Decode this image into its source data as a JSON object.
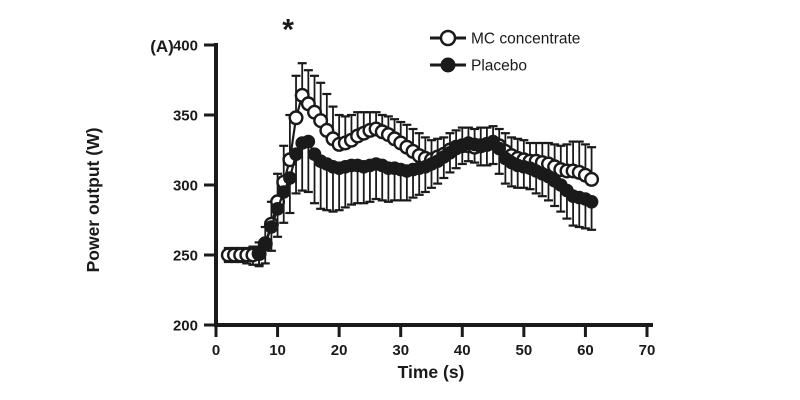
{
  "figure": {
    "panel_label": "(A)",
    "background": "#ffffff",
    "ink_color": "#1a1a1a"
  },
  "chart_data": {
    "type": "line",
    "title": "",
    "xlabel": "Time (s)",
    "ylabel": "Power output (W)",
    "xlim": [
      0,
      70
    ],
    "ylim": [
      200,
      400
    ],
    "x_ticks": [
      0,
      10,
      20,
      30,
      40,
      50,
      60,
      70
    ],
    "y_ticks": [
      200,
      250,
      300,
      350,
      400
    ],
    "grid": false,
    "legend_position": "top-right",
    "annotation": {
      "text": "*",
      "x": 11.7,
      "y": 404
    },
    "series": [
      {
        "name": "MC concentrate",
        "marker": "open-circle",
        "x": [
          2,
          3,
          4,
          5,
          6,
          7,
          8,
          9,
          10,
          11,
          12,
          13,
          14,
          15,
          16,
          17,
          18,
          19,
          20,
          21,
          22,
          23,
          24,
          25,
          26,
          27,
          28,
          29,
          30,
          31,
          32,
          33,
          34,
          35,
          36,
          37,
          38,
          39,
          40,
          41,
          42,
          43,
          44,
          45,
          46,
          47,
          48,
          49,
          50,
          51,
          52,
          53,
          54,
          55,
          56,
          57,
          58,
          59,
          60,
          61
        ],
        "values": [
          250,
          250,
          250,
          250,
          250,
          251,
          258,
          272,
          288,
          302,
          318,
          348,
          364,
          358,
          352,
          346,
          339,
          333,
          329,
          330,
          332,
          335,
          337,
          339,
          340,
          338,
          336,
          333,
          330,
          327,
          324,
          321,
          319,
          318,
          320,
          322,
          325,
          327,
          328,
          328,
          327,
          328,
          329,
          330,
          328,
          324,
          321,
          319,
          318,
          317,
          317,
          316,
          315,
          313,
          311,
          310,
          310,
          309,
          307,
          304
        ],
        "err_up": [
          5,
          5,
          5,
          5,
          6,
          8,
          12,
          16,
          20,
          26,
          32,
          30,
          23,
          24,
          26,
          27,
          26,
          23,
          21,
          19,
          18,
          17,
          15,
          13,
          12,
          12,
          13,
          14,
          15,
          16,
          16,
          16,
          15,
          14,
          13,
          12,
          12,
          12,
          13,
          13,
          13,
          13,
          12,
          12,
          12,
          13,
          13,
          14,
          14,
          13,
          13,
          14,
          15,
          16,
          17,
          19,
          21,
          22,
          22,
          23
        ],
        "err_down": [
          5,
          5,
          5,
          6,
          7,
          8,
          0,
          0,
          0,
          0,
          0,
          0,
          0,
          0,
          0,
          0,
          0,
          0,
          0,
          0,
          0,
          0,
          0,
          0,
          0,
          0,
          0,
          0,
          0,
          0,
          0,
          0,
          0,
          0,
          0,
          0,
          0,
          0,
          0,
          0,
          0,
          0,
          0,
          0,
          0,
          0,
          0,
          0,
          0,
          0,
          0,
          0,
          0,
          0,
          0,
          0,
          0,
          0,
          0,
          0
        ]
      },
      {
        "name": "Placebo",
        "marker": "filled-circle",
        "x": [
          7,
          8,
          9,
          10,
          11,
          12,
          13,
          14,
          15,
          16,
          17,
          18,
          19,
          20,
          21,
          22,
          23,
          24,
          25,
          26,
          27,
          28,
          29,
          30,
          31,
          32,
          33,
          34,
          35,
          36,
          37,
          38,
          39,
          40,
          41,
          42,
          43,
          44,
          45,
          46,
          47,
          48,
          49,
          50,
          51,
          52,
          53,
          54,
          55,
          56,
          57,
          58,
          59,
          60,
          61
        ],
        "values": [
          252,
          258,
          270,
          283,
          295,
          305,
          322,
          330,
          331,
          322,
          317,
          315,
          313,
          312,
          313,
          314,
          314,
          313,
          314,
          315,
          314,
          312,
          312,
          311,
          310,
          311,
          312,
          313,
          315,
          317,
          320,
          323,
          326,
          328,
          330,
          329,
          328,
          329,
          331,
          326,
          319,
          316,
          314,
          313,
          312,
          310,
          308,
          306,
          303,
          300,
          296,
          292,
          291,
          290,
          288
        ],
        "err_down": [
          10,
          14,
          17,
          20,
          22,
          25,
          28,
          34,
          36,
          35,
          34,
          33,
          32,
          30,
          29,
          28,
          27,
          26,
          26,
          25,
          25,
          24,
          23,
          22,
          21,
          20,
          19,
          18,
          17,
          16,
          15,
          14,
          14,
          13,
          13,
          13,
          14,
          15,
          16,
          18,
          18,
          17,
          16,
          15,
          15,
          16,
          16,
          17,
          18,
          19,
          20,
          21,
          21,
          21,
          20
        ]
      }
    ]
  }
}
